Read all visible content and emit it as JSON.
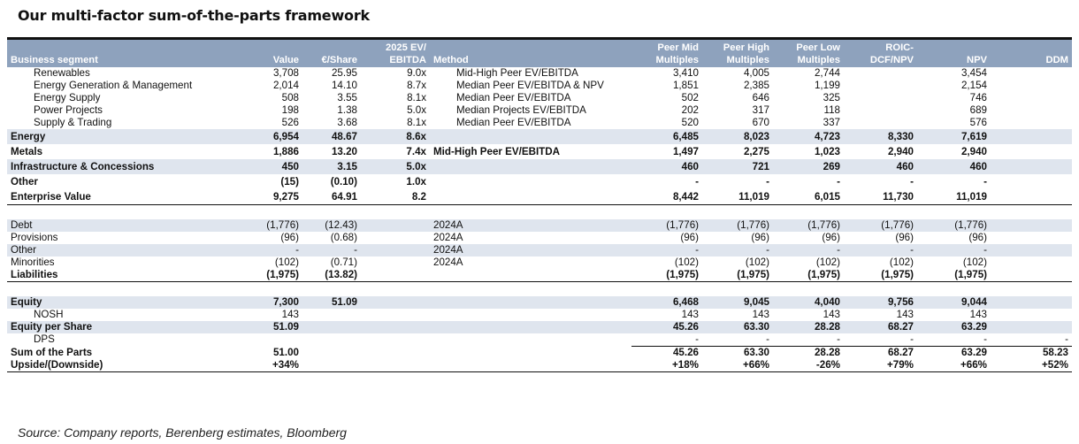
{
  "title": "Our multi-factor sum-of-the-parts framework",
  "headers": [
    [
      "",
      "Business segment"
    ],
    [
      "",
      "Value"
    ],
    [
      "",
      "€/Share"
    ],
    [
      "2025 EV/",
      "EBITDA"
    ],
    [
      "",
      "Method"
    ],
    [
      "Peer Mid",
      "Multiples"
    ],
    [
      "Peer High",
      "Multiples"
    ],
    [
      "Peer Low",
      "Multiples"
    ],
    [
      "ROIC-",
      "DCF/NPV"
    ],
    [
      "",
      "NPV"
    ],
    [
      "",
      "DDM"
    ]
  ],
  "rows": [
    {
      "cells": [
        "Renewables",
        "3,708",
        "25.95",
        "9.0x",
        "Mid-High Peer EV/EBITDA",
        "3,410",
        "4,005",
        "2,744",
        "",
        "3,454",
        ""
      ]
    },
    {
      "cells": [
        "Energy Generation & Management",
        "2,014",
        "14.10",
        "8.7x",
        "Median Peer EV/EBITDA & NPV",
        "1,851",
        "2,385",
        "1,199",
        "",
        "2,154",
        ""
      ]
    },
    {
      "cells": [
        "Energy Supply",
        "508",
        "3.55",
        "8.1x",
        "Median Peer EV/EBITDA",
        "502",
        "646",
        "325",
        "",
        "746",
        ""
      ]
    },
    {
      "cells": [
        "Power Projects",
        "198",
        "1.38",
        "5.0x",
        "Median Projects EV/EBITDA",
        "202",
        "317",
        "118",
        "",
        "689",
        ""
      ]
    },
    {
      "cells": [
        "Supply & Trading",
        "526",
        "3.68",
        "8.1x",
        "Median Peer EV/EBITDA",
        "520",
        "670",
        "337",
        "",
        "576",
        ""
      ]
    },
    {
      "cells": [
        "Energy",
        "6,954",
        "48.67",
        "8.6x",
        "",
        "6,485",
        "8,023",
        "4,723",
        "8,330",
        "7,619",
        ""
      ]
    },
    {
      "cells": [
        "Metals",
        "1,886",
        "13.20",
        "7.4x",
        "Mid-High Peer EV/EBITDA",
        "1,497",
        "2,275",
        "1,023",
        "2,940",
        "2,940",
        ""
      ]
    },
    {
      "cells": [
        "Infrastructure & Concessions",
        "450",
        "3.15",
        "5.0x",
        "",
        "460",
        "721",
        "269",
        "460",
        "460",
        ""
      ]
    },
    {
      "cells": [
        "Other",
        "(15)",
        "(0.10)",
        "1.0x",
        "",
        "-",
        "-",
        "-",
        "-",
        "-",
        ""
      ]
    },
    {
      "cells": [
        "Enterprise Value",
        "9,275",
        "64.91",
        "8.2",
        "",
        "8,442",
        "11,019",
        "6,015",
        "11,730",
        "11,019",
        ""
      ]
    },
    {
      "cells": [
        "",
        "",
        "",
        "",
        "",
        "",
        "",
        "",
        "",
        "",
        ""
      ]
    },
    {
      "cells": [
        "Debt",
        "(1,776)",
        "(12.43)",
        "",
        "2024A",
        "(1,776)",
        "(1,776)",
        "(1,776)",
        "(1,776)",
        "(1,776)",
        ""
      ]
    },
    {
      "cells": [
        "Provisions",
        "(96)",
        "(0.68)",
        "",
        "2024A",
        "(96)",
        "(96)",
        "(96)",
        "(96)",
        "(96)",
        ""
      ]
    },
    {
      "cells": [
        "Other",
        "-",
        "-",
        "",
        "2024A",
        "-",
        "-",
        "-",
        "-",
        "-",
        ""
      ]
    },
    {
      "cells": [
        "Minorities",
        "(102)",
        "(0.71)",
        "",
        "2024A",
        "(102)",
        "(102)",
        "(102)",
        "(102)",
        "(102)",
        ""
      ]
    },
    {
      "cells": [
        "Liabilities",
        "(1,975)",
        "(13.82)",
        "",
        "",
        "(1,975)",
        "(1,975)",
        "(1,975)",
        "(1,975)",
        "(1,975)",
        ""
      ]
    },
    {
      "cells": [
        "",
        "",
        "",
        "",
        "",
        "",
        "",
        "",
        "",
        "",
        ""
      ]
    },
    {
      "cells": [
        "Equity",
        "7,300",
        "51.09",
        "",
        "",
        "6,468",
        "9,045",
        "4,040",
        "9,756",
        "9,044",
        ""
      ]
    },
    {
      "cells": [
        "NOSH",
        "143",
        "",
        "",
        "",
        "143",
        "143",
        "143",
        "143",
        "143",
        ""
      ]
    },
    {
      "cells": [
        "Equity per Share",
        "51.09",
        "",
        "",
        "",
        "45.26",
        "63.30",
        "28.28",
        "68.27",
        "63.29",
        ""
      ]
    },
    {
      "cells": [
        "DPS",
        "",
        "",
        "",
        "",
        "-",
        "-",
        "-",
        "-",
        "-",
        "-"
      ]
    },
    {
      "cells": [
        "Sum of the Parts",
        "51.00",
        "",
        "",
        "",
        "45.26",
        "63.30",
        "28.28",
        "68.27",
        "63.29",
        "58.23"
      ]
    },
    {
      "cells": [
        "Upside/(Downside)",
        "+34%",
        "",
        "",
        "",
        "+18%",
        "+66%",
        "-26%",
        "+79%",
        "+66%",
        "+52%"
      ]
    }
  ],
  "source": "Source: Company reports, Berenberg estimates, Bloomberg"
}
